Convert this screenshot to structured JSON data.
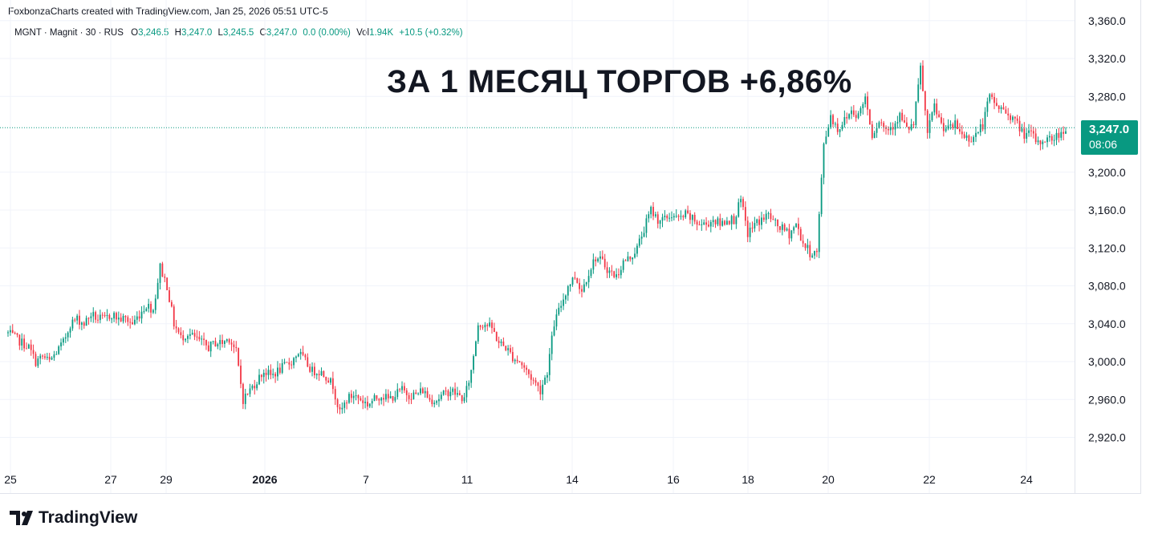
{
  "attribution": "FoxbonzaCharts created with TradingView.com, Jan 25, 2026 05:51 UTC-5",
  "legend": {
    "symbol": "MGNT · Magnit · 30 · RUS",
    "o_label": "O",
    "o": "3,246.5",
    "h_label": "H",
    "h": "3,247.0",
    "l_label": "L",
    "l": "3,245.5",
    "c_label": "C",
    "c": "3,247.0",
    "change": "0.0 (0.00%)",
    "vol_label": "Vol",
    "vol": "1.94K",
    "vol_change": "+10.5 (+0.32%)"
  },
  "headline": "ЗА 1 МЕСЯЦ ТОРГОВ +6,86%",
  "price_tag": {
    "price": "3,247.0",
    "countdown": "08:06"
  },
  "brand": "TradingView",
  "colors": {
    "up": "#089981",
    "down": "#f23645",
    "grid": "#f0f3fa",
    "text": "#131722"
  },
  "chart_data": {
    "type": "candlestick",
    "y_ticks": [
      2920,
      2960,
      3000,
      3040,
      3080,
      3120,
      3160,
      3200,
      3280,
      3320,
      3360
    ],
    "y_tick_labels": [
      "2,920.0",
      "2,960.0",
      "3,000.0",
      "3,040.0",
      "3,080.0",
      "3,120.0",
      "3,160.0",
      "3,200.0",
      "3,280.0",
      "3,320.0",
      "3,360.0"
    ],
    "ylim": [
      2900,
      3362
    ],
    "x_tick_labels": [
      "25",
      "27",
      "29",
      "2026",
      "7",
      "11",
      "14",
      "16",
      "18",
      "20",
      "22",
      "24"
    ],
    "current_price": 3247.0,
    "path": [
      [
        0,
        3030
      ],
      [
        3,
        3025
      ],
      [
        6,
        3020
      ],
      [
        9,
        3015
      ],
      [
        12,
        3000
      ],
      [
        15,
        3005
      ],
      [
        18,
        3000
      ],
      [
        21,
        3010
      ],
      [
        24,
        3020
      ],
      [
        27,
        3040
      ],
      [
        30,
        3045
      ],
      [
        33,
        3040
      ],
      [
        36,
        3050
      ],
      [
        39,
        3045
      ],
      [
        42,
        3045
      ],
      [
        45,
        3050
      ],
      [
        48,
        3045
      ],
      [
        51,
        3045
      ],
      [
        54,
        3040
      ],
      [
        57,
        3050
      ],
      [
        60,
        3060
      ],
      [
        63,
        3055
      ],
      [
        66,
        3100
      ],
      [
        69,
        3080
      ],
      [
        72,
        3040
      ],
      [
        75,
        3025
      ],
      [
        78,
        3030
      ],
      [
        81,
        3025
      ],
      [
        84,
        3020
      ],
      [
        87,
        3015
      ],
      [
        90,
        3020
      ],
      [
        93,
        3020
      ],
      [
        96,
        3025
      ],
      [
        99,
        3010
      ],
      [
        102,
        2960
      ],
      [
        105,
        2970
      ],
      [
        108,
        2980
      ],
      [
        111,
        2990
      ],
      [
        114,
        2985
      ],
      [
        117,
        2990
      ],
      [
        120,
        2995
      ],
      [
        123,
        3000
      ],
      [
        126,
        3010
      ],
      [
        129,
        3000
      ],
      [
        132,
        2990
      ],
      [
        135,
        2990
      ],
      [
        138,
        2985
      ],
      [
        141,
        2975
      ],
      [
        144,
        2945
      ],
      [
        147,
        2960
      ],
      [
        150,
        2965
      ],
      [
        153,
        2960
      ],
      [
        156,
        2955
      ],
      [
        159,
        2960
      ],
      [
        162,
        2965
      ],
      [
        165,
        2960
      ],
      [
        168,
        2965
      ],
      [
        171,
        2970
      ],
      [
        174,
        2965
      ],
      [
        177,
        2965
      ],
      [
        180,
        2970
      ],
      [
        183,
        2960
      ],
      [
        186,
        2960
      ],
      [
        189,
        2965
      ],
      [
        192,
        2970
      ],
      [
        195,
        2965
      ],
      [
        198,
        2960
      ],
      [
        201,
        2990
      ],
      [
        204,
        3040
      ],
      [
        207,
        3040
      ],
      [
        210,
        3035
      ],
      [
        213,
        3020
      ],
      [
        216,
        3015
      ],
      [
        219,
        3005
      ],
      [
        222,
        3000
      ],
      [
        225,
        2990
      ],
      [
        228,
        2980
      ],
      [
        231,
        2970
      ],
      [
        234,
        2990
      ],
      [
        237,
        3040
      ],
      [
        240,
        3060
      ],
      [
        243,
        3080
      ],
      [
        246,
        3090
      ],
      [
        249,
        3075
      ],
      [
        252,
        3095
      ],
      [
        255,
        3110
      ],
      [
        258,
        3105
      ],
      [
        261,
        3095
      ],
      [
        264,
        3090
      ],
      [
        267,
        3105
      ],
      [
        270,
        3110
      ],
      [
        273,
        3120
      ],
      [
        276,
        3140
      ],
      [
        279,
        3160
      ],
      [
        282,
        3150
      ],
      [
        285,
        3150
      ],
      [
        288,
        3155
      ],
      [
        291,
        3150
      ],
      [
        294,
        3155
      ],
      [
        297,
        3150
      ],
      [
        300,
        3145
      ],
      [
        303,
        3145
      ],
      [
        306,
        3150
      ],
      [
        309,
        3145
      ],
      [
        312,
        3150
      ],
      [
        315,
        3150
      ],
      [
        318,
        3170
      ],
      [
        321,
        3135
      ],
      [
        324,
        3145
      ],
      [
        327,
        3150
      ],
      [
        330,
        3155
      ],
      [
        333,
        3145
      ],
      [
        336,
        3140
      ],
      [
        339,
        3135
      ],
      [
        342,
        3145
      ],
      [
        345,
        3125
      ],
      [
        348,
        3115
      ],
      [
        351,
        3115
      ],
      [
        354,
        3230
      ],
      [
        357,
        3260
      ],
      [
        360,
        3245
      ],
      [
        363,
        3255
      ],
      [
        366,
        3265
      ],
      [
        369,
        3260
      ],
      [
        372,
        3280
      ],
      [
        375,
        3240
      ],
      [
        378,
        3255
      ],
      [
        381,
        3245
      ],
      [
        384,
        3250
      ],
      [
        387,
        3260
      ],
      [
        390,
        3245
      ],
      [
        393,
        3250
      ],
      [
        396,
        3310
      ],
      [
        399,
        3240
      ],
      [
        402,
        3270
      ],
      [
        405,
        3250
      ],
      [
        408,
        3245
      ],
      [
        411,
        3250
      ],
      [
        414,
        3240
      ],
      [
        417,
        3235
      ],
      [
        420,
        3240
      ],
      [
        423,
        3250
      ],
      [
        426,
        3280
      ],
      [
        429,
        3270
      ],
      [
        432,
        3265
      ],
      [
        435,
        3260
      ],
      [
        438,
        3250
      ],
      [
        441,
        3240
      ],
      [
        444,
        3240
      ],
      [
        447,
        3230
      ],
      [
        450,
        3235
      ],
      [
        453,
        3235
      ],
      [
        456,
        3240
      ],
      [
        459,
        3247
      ]
    ],
    "n_candles": 460
  }
}
